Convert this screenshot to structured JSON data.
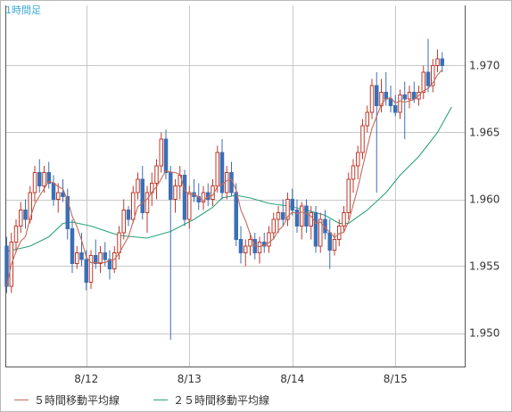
{
  "chart_data": {
    "type": "candlestick",
    "title": "1時間足",
    "ylim": [
      1.9475,
      1.9745
    ],
    "yticks": [
      1.95,
      1.955,
      1.96,
      1.965,
      1.97
    ],
    "ytick_labels": [
      "1.950",
      "1.955",
      "1.960",
      "1.965",
      "1.970"
    ],
    "xtick_labels": [
      {
        "label": "8/12",
        "bar": 17
      },
      {
        "label": "8/13",
        "bar": 39
      },
      {
        "label": "8/14",
        "bar": 61
      },
      {
        "label": "8/15",
        "bar": 83
      }
    ],
    "grid": true,
    "colors": {
      "up_candle": "#c03a2b",
      "down_candle": "#3b6fb6",
      "ma5": "#c46a5a",
      "ma25": "#2aa37b",
      "grid": "#c8c8c8"
    },
    "candles": [
      [
        1.9565,
        1.9572,
        1.953,
        1.9535
      ],
      [
        1.9535,
        1.9575,
        1.953,
        1.9568
      ],
      [
        1.9568,
        1.9585,
        1.956,
        1.958
      ],
      [
        1.958,
        1.9598,
        1.9575,
        1.9592
      ],
      [
        1.9592,
        1.96,
        1.9578,
        1.9585
      ],
      [
        1.9585,
        1.961,
        1.9582,
        1.9605
      ],
      [
        1.9605,
        1.9625,
        1.9598,
        1.962
      ],
      [
        1.962,
        1.963,
        1.9605,
        1.961
      ],
      [
        1.961,
        1.9625,
        1.9605,
        1.962
      ],
      [
        1.962,
        1.9628,
        1.9608,
        1.9612
      ],
      [
        1.9612,
        1.9618,
        1.9595,
        1.96
      ],
      [
        1.96,
        1.9612,
        1.959,
        1.9605
      ],
      [
        1.9605,
        1.9615,
        1.9598,
        1.9602
      ],
      [
        1.9602,
        1.9608,
        1.957,
        1.9578
      ],
      [
        1.9578,
        1.9585,
        1.9545,
        1.9552
      ],
      [
        1.9552,
        1.9565,
        1.9548,
        1.956
      ],
      [
        1.956,
        1.9575,
        1.955,
        1.9555
      ],
      [
        1.9555,
        1.9562,
        1.9532,
        1.9538
      ],
      [
        1.9538,
        1.9562,
        1.9533,
        1.9558
      ],
      [
        1.9558,
        1.957,
        1.9548,
        1.9552
      ],
      [
        1.9552,
        1.9565,
        1.9545,
        1.956
      ],
      [
        1.956,
        1.9568,
        1.955,
        1.9555
      ],
      [
        1.9555,
        1.9562,
        1.954,
        1.9548
      ],
      [
        1.9548,
        1.9565,
        1.9545,
        1.956
      ],
      [
        1.956,
        1.958,
        1.9555,
        1.9575
      ],
      [
        1.9575,
        1.96,
        1.957,
        1.9592
      ],
      [
        1.9592,
        1.9595,
        1.958,
        1.9585
      ],
      [
        1.9585,
        1.961,
        1.9582,
        1.9605
      ],
      [
        1.9605,
        1.962,
        1.96,
        1.9615
      ],
      [
        1.9615,
        1.9625,
        1.9585,
        1.959
      ],
      [
        1.959,
        1.961,
        1.9575,
        1.9605
      ],
      [
        1.9605,
        1.962,
        1.9595,
        1.9612
      ],
      [
        1.9612,
        1.963,
        1.96,
        1.9625
      ],
      [
        1.9625,
        1.965,
        1.962,
        1.9645
      ],
      [
        1.9645,
        1.9652,
        1.9615,
        1.962
      ],
      [
        1.962,
        1.9625,
        1.9495,
        1.96
      ],
      [
        1.96,
        1.9615,
        1.959,
        1.961
      ],
      [
        1.961,
        1.9625,
        1.96,
        1.9618
      ],
      [
        1.9618,
        1.9622,
        1.958,
        1.9585
      ],
      [
        1.9585,
        1.961,
        1.9578,
        1.9605
      ],
      [
        1.9605,
        1.9615,
        1.9598,
        1.9602
      ],
      [
        1.9602,
        1.9612,
        1.9592,
        1.9598
      ],
      [
        1.9598,
        1.961,
        1.9592,
        1.9605
      ],
      [
        1.9605,
        1.9612,
        1.9595,
        1.96
      ],
      [
        1.96,
        1.9615,
        1.9595,
        1.961
      ],
      [
        1.961,
        1.964,
        1.9605,
        1.9635
      ],
      [
        1.9635,
        1.9645,
        1.96,
        1.9605
      ],
      [
        1.9605,
        1.9625,
        1.96,
        1.962
      ],
      [
        1.962,
        1.9628,
        1.9602,
        1.9605
      ],
      [
        1.9605,
        1.9612,
        1.9565,
        1.957
      ],
      [
        1.957,
        1.958,
        1.9552,
        1.956
      ],
      [
        1.956,
        1.957,
        1.955,
        1.9565
      ],
      [
        1.9565,
        1.9575,
        1.9558,
        1.957
      ],
      [
        1.957,
        1.9575,
        1.9555,
        1.956
      ],
      [
        1.956,
        1.9572,
        1.9552,
        1.9568
      ],
      [
        1.9568,
        1.9575,
        1.956,
        1.9565
      ],
      [
        1.9565,
        1.958,
        1.956,
        1.9575
      ],
      [
        1.9575,
        1.959,
        1.957,
        1.9585
      ],
      [
        1.9585,
        1.9595,
        1.9575,
        1.959
      ],
      [
        1.959,
        1.96,
        1.958,
        1.9585
      ],
      [
        1.9585,
        1.9605,
        1.958,
        1.96
      ],
      [
        1.96,
        1.9608,
        1.9588,
        1.9592
      ],
      [
        1.9592,
        1.96,
        1.9575,
        1.958
      ],
      [
        1.958,
        1.9598,
        1.957,
        1.9595
      ],
      [
        1.9595,
        1.96,
        1.9575,
        1.958
      ],
      [
        1.958,
        1.9595,
        1.957,
        1.959
      ],
      [
        1.959,
        1.9595,
        1.956,
        1.9565
      ],
      [
        1.9565,
        1.959,
        1.956,
        1.9585
      ],
      [
        1.9585,
        1.9592,
        1.957,
        1.9575
      ],
      [
        1.9575,
        1.9585,
        1.9548,
        1.9562
      ],
      [
        1.9562,
        1.9575,
        1.9558,
        1.957
      ],
      [
        1.957,
        1.9585,
        1.9565,
        1.958
      ],
      [
        1.958,
        1.9595,
        1.9575,
        1.959
      ],
      [
        1.959,
        1.962,
        1.9585,
        1.9615
      ],
      [
        1.9615,
        1.963,
        1.9605,
        1.9625
      ],
      [
        1.9625,
        1.964,
        1.9615,
        1.9635
      ],
      [
        1.9635,
        1.966,
        1.963,
        1.9655
      ],
      [
        1.9655,
        1.967,
        1.965,
        1.9665
      ],
      [
        1.9665,
        1.969,
        1.966,
        1.9685
      ],
      [
        1.9685,
        1.9695,
        1.9605,
        1.967
      ],
      [
        1.967,
        1.969,
        1.9665,
        1.968
      ],
      [
        1.968,
        1.9695,
        1.967,
        1.9675
      ],
      [
        1.9675,
        1.9685,
        1.9665,
        1.967
      ],
      [
        1.967,
        1.9678,
        1.9662,
        1.9665
      ],
      [
        1.9665,
        1.9682,
        1.966,
        1.9678
      ],
      [
        1.9678,
        1.9688,
        1.9645,
        1.9675
      ],
      [
        1.9675,
        1.9685,
        1.9668,
        1.968
      ],
      [
        1.968,
        1.9688,
        1.9672,
        1.9675
      ],
      [
        1.9675,
        1.9685,
        1.967,
        1.968
      ],
      [
        1.968,
        1.97,
        1.9675,
        1.9695
      ],
      [
        1.9695,
        1.972,
        1.968,
        1.9685
      ],
      [
        1.9685,
        1.9705,
        1.968,
        1.97
      ],
      [
        1.97,
        1.9712,
        1.9695,
        1.9705
      ],
      [
        1.9705,
        1.971,
        1.9695,
        1.97
      ]
    ],
    "ma25_points": [
      {
        "bar": 0,
        "y": 1.9561
      },
      {
        "bar": 5,
        "y": 1.9565
      },
      {
        "bar": 9,
        "y": 1.9572
      },
      {
        "bar": 12,
        "y": 1.9582
      },
      {
        "bar": 14,
        "y": 1.9583
      },
      {
        "bar": 18,
        "y": 1.958
      },
      {
        "bar": 24,
        "y": 1.9573
      },
      {
        "bar": 30,
        "y": 1.9571
      },
      {
        "bar": 35,
        "y": 1.9576
      },
      {
        "bar": 40,
        "y": 1.9585
      },
      {
        "bar": 44,
        "y": 1.9594
      },
      {
        "bar": 46,
        "y": 1.9601
      },
      {
        "bar": 49,
        "y": 1.9603
      },
      {
        "bar": 52,
        "y": 1.9601
      },
      {
        "bar": 56,
        "y": 1.9597
      },
      {
        "bar": 60,
        "y": 1.9595
      },
      {
        "bar": 64,
        "y": 1.9592
      },
      {
        "bar": 68,
        "y": 1.9588
      },
      {
        "bar": 71,
        "y": 1.9582
      },
      {
        "bar": 73,
        "y": 1.9582
      },
      {
        "bar": 77,
        "y": 1.9592
      },
      {
        "bar": 81,
        "y": 1.9605
      },
      {
        "bar": 84,
        "y": 1.9618
      },
      {
        "bar": 88,
        "y": 1.9632
      },
      {
        "bar": 92,
        "y": 1.965
      },
      {
        "bar": 95,
        "y": 1.9669
      }
    ],
    "legend": [
      {
        "label": "５時間移動平均線",
        "color": "#c46a5a"
      },
      {
        "label": "２５時間移動平均線",
        "color": "#2aa37b"
      }
    ]
  }
}
